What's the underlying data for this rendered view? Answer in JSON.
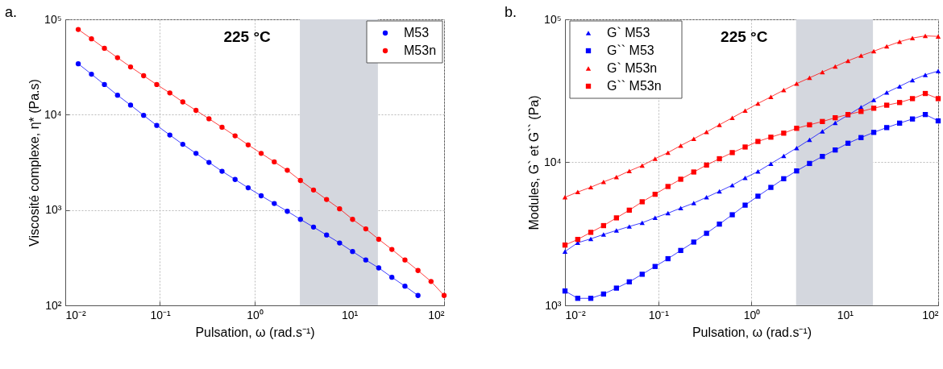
{
  "chart_data": [
    {
      "type": "line",
      "title": "a.",
      "xlabel": "Pulsation, ω (rad.s⁻¹)",
      "ylabel": "Viscosité complexe, η* (Pa.s)",
      "log": "xy",
      "grid": true,
      "legend": "top right",
      "marker": "circle",
      "line_style": "solid",
      "annotations": [
        "225 °C"
      ],
      "bands": [
        {
          "axis": "x",
          "from": 3,
          "to": 20,
          "color": "#d4d7de"
        }
      ],
      "xlim": [
        0.01,
        100
      ],
      "ylim": [
        100,
        100000
      ],
      "xticks": [
        {
          "value": 0.01,
          "label": "10⁻²"
        },
        {
          "value": 0.1,
          "label": "10⁻¹"
        },
        {
          "value": 1,
          "label": "10⁰"
        },
        {
          "value": 10,
          "label": "10¹"
        },
        {
          "value": 100,
          "label": "10²"
        }
      ],
      "yticks": [
        {
          "value": 100,
          "label": "10²"
        },
        {
          "value": 1000,
          "label": "10³"
        },
        {
          "value": 10000,
          "label": "10⁴"
        },
        {
          "value": 100000,
          "label": "10⁵"
        }
      ],
      "x": [
        0.0137,
        0.0189,
        0.0259,
        0.0356,
        0.0489,
        0.0672,
        0.0924,
        0.127,
        0.174,
        0.24,
        0.329,
        0.452,
        0.621,
        0.853,
        1.17,
        1.61,
        2.21,
        3.04,
        4.18,
        5.74,
        7.88,
        10.8,
        14.9,
        20.4,
        28.1,
        38.6,
        53.0,
        72.8,
        100
      ],
      "series": [
        {
          "name": "M53",
          "color": "#0000ff",
          "values": [
            34200,
            26600,
            20700,
            16000,
            12600,
            9840,
            7710,
            6120,
            4890,
            3930,
            3160,
            2550,
            2090,
            1710,
            1410,
            1170,
            970,
            798,
            662,
            547,
            451,
            367,
            299,
            247,
            197,
            159,
            127,
            null,
            null
          ]
        },
        {
          "name": "M53n",
          "color": "#ff0000",
          "values": [
            78300,
            62500,
            49700,
            39600,
            31700,
            25600,
            20700,
            16900,
            13600,
            11100,
            9060,
            7380,
            6000,
            4820,
            3930,
            3200,
            2610,
            2040,
            1620,
            1290,
            1030,
            798,
            634,
            493,
            386,
            299,
            232,
            178,
            127
          ]
        }
      ]
    },
    {
      "type": "line",
      "title": "b.",
      "xlabel": "Pulsation, ω (rad.s⁻¹)",
      "ylabel": "Modules, G` et G`` (Pa)",
      "log": "xy",
      "grid": true,
      "legend": "top left",
      "line_style": "solid",
      "annotations": [
        "225 °C"
      ],
      "bands": [
        {
          "axis": "x",
          "from": 3,
          "to": 20,
          "color": "#d4d7de"
        }
      ],
      "xlim": [
        0.01,
        100
      ],
      "ylim": [
        1000,
        100000
      ],
      "xticks": [
        {
          "value": 0.01,
          "label": "10⁻²"
        },
        {
          "value": 0.1,
          "label": "10⁻¹"
        },
        {
          "value": 1,
          "label": "10⁰"
        },
        {
          "value": 10,
          "label": "10¹"
        },
        {
          "value": 100,
          "label": "10²"
        }
      ],
      "yticks": [
        {
          "value": 1000,
          "label": "10³"
        },
        {
          "value": 10000,
          "label": "10⁴"
        },
        {
          "value": 100000,
          "label": "10⁵"
        }
      ],
      "x": [
        0.01,
        0.0137,
        0.0189,
        0.0259,
        0.0356,
        0.0489,
        0.0672,
        0.0924,
        0.127,
        0.174,
        0.24,
        0.329,
        0.452,
        0.621,
        0.853,
        1.17,
        1.61,
        2.21,
        3.04,
        4.18,
        5.74,
        7.88,
        10.8,
        14.9,
        20.4,
        28.1,
        38.6,
        53.0,
        72.8,
        100
      ],
      "series": [
        {
          "name": "G`  M53",
          "color": "#0000ff",
          "marker": "triangle",
          "values": [
            2380,
            2740,
            2920,
            3130,
            3340,
            3560,
            3780,
            4100,
            4410,
            4790,
            5190,
            5700,
            6270,
            6920,
            7790,
            8630,
            9790,
            11100,
            12600,
            14400,
            16500,
            18900,
            21400,
            24300,
            27300,
            30800,
            34000,
            37600,
            40900,
            43500
          ]
        },
        {
          "name": "G``  M53",
          "color": "#0000ff",
          "marker": "square",
          "values": [
            1260,
            1120,
            1120,
            1200,
            1320,
            1460,
            1650,
            1870,
            2120,
            2420,
            2770,
            3190,
            3700,
            4300,
            5020,
            5800,
            6680,
            7680,
            8710,
            9820,
            11000,
            12200,
            13600,
            14900,
            16200,
            17500,
            18800,
            20100,
            21600,
            19500
          ]
        },
        {
          "name": "G`  M53n",
          "color": "#ff0000",
          "marker": "triangle",
          "values": [
            5700,
            6200,
            6700,
            7300,
            7900,
            8700,
            9500,
            10600,
            11700,
            13100,
            14600,
            16300,
            18300,
            20500,
            23000,
            25800,
            28700,
            32000,
            35500,
            39000,
            42800,
            46800,
            51300,
            55700,
            59900,
            64700,
            69700,
            74000,
            76600,
            76000
          ]
        },
        {
          "name": "G``  M53n",
          "color": "#ff0000",
          "marker": "square",
          "values": [
            2640,
            2890,
            3240,
            3610,
            4090,
            4630,
            5300,
            5980,
            6780,
            7620,
            8560,
            9570,
            10600,
            11700,
            12800,
            14000,
            15000,
            16000,
            17300,
            18300,
            19300,
            20500,
            21600,
            22700,
            23900,
            25100,
            26200,
            27900,
            30300,
            27900
          ]
        }
      ]
    }
  ]
}
